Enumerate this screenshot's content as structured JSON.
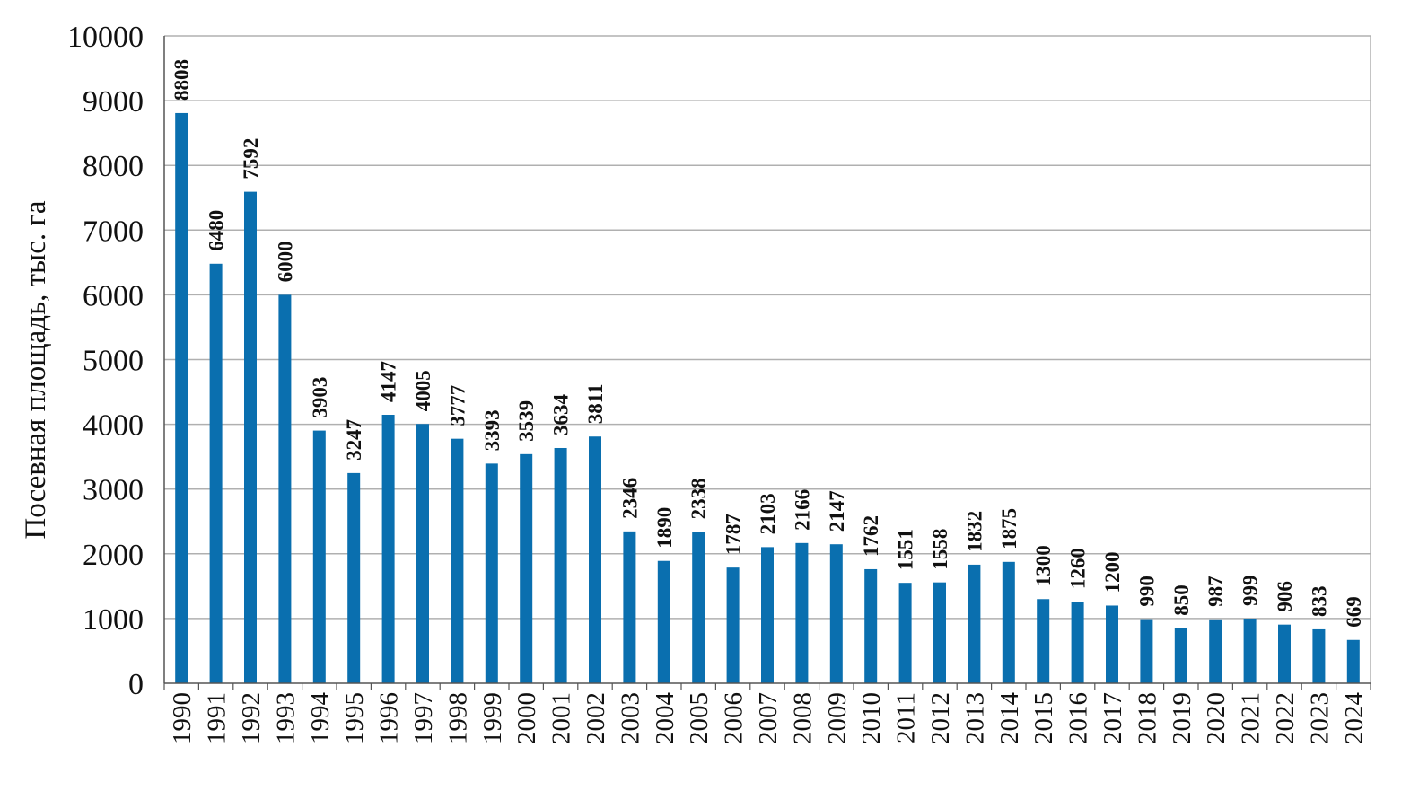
{
  "colors": {
    "bar": "#0a6faf",
    "grid": "#b0b0b0",
    "axis": "#555555",
    "text": "#111111"
  },
  "chart_data": {
    "type": "bar",
    "title": "",
    "xlabel": "",
    "ylabel": "Посевная площадь, тыс. га",
    "ylim": [
      0,
      10000
    ],
    "yticks": [
      0,
      1000,
      2000,
      3000,
      4000,
      5000,
      6000,
      7000,
      8000,
      9000,
      10000
    ],
    "grid": true,
    "legend": "none",
    "categories": [
      "1990",
      "1991",
      "1992",
      "1993",
      "1994",
      "1995",
      "1996",
      "1997",
      "1998",
      "1999",
      "2000",
      "2001",
      "2002",
      "2003",
      "2004",
      "2005",
      "2006",
      "2007",
      "2008",
      "2009",
      "2010",
      "2011",
      "2012",
      "2013",
      "2014",
      "2015",
      "2016",
      "2017",
      "2018",
      "2019",
      "2020",
      "2021",
      "2022",
      "2023",
      "2024"
    ],
    "values": [
      8808,
      6480,
      7592,
      6000,
      3903,
      3247,
      4147,
      4005,
      3777,
      3393,
      3539,
      3634,
      3811,
      2346,
      1890,
      2338,
      1787,
      2103,
      2166,
      2147,
      1762,
      1551,
      1558,
      1832,
      1875,
      1300,
      1260,
      1200,
      990,
      850,
      987,
      999,
      906,
      833,
      669
    ]
  }
}
